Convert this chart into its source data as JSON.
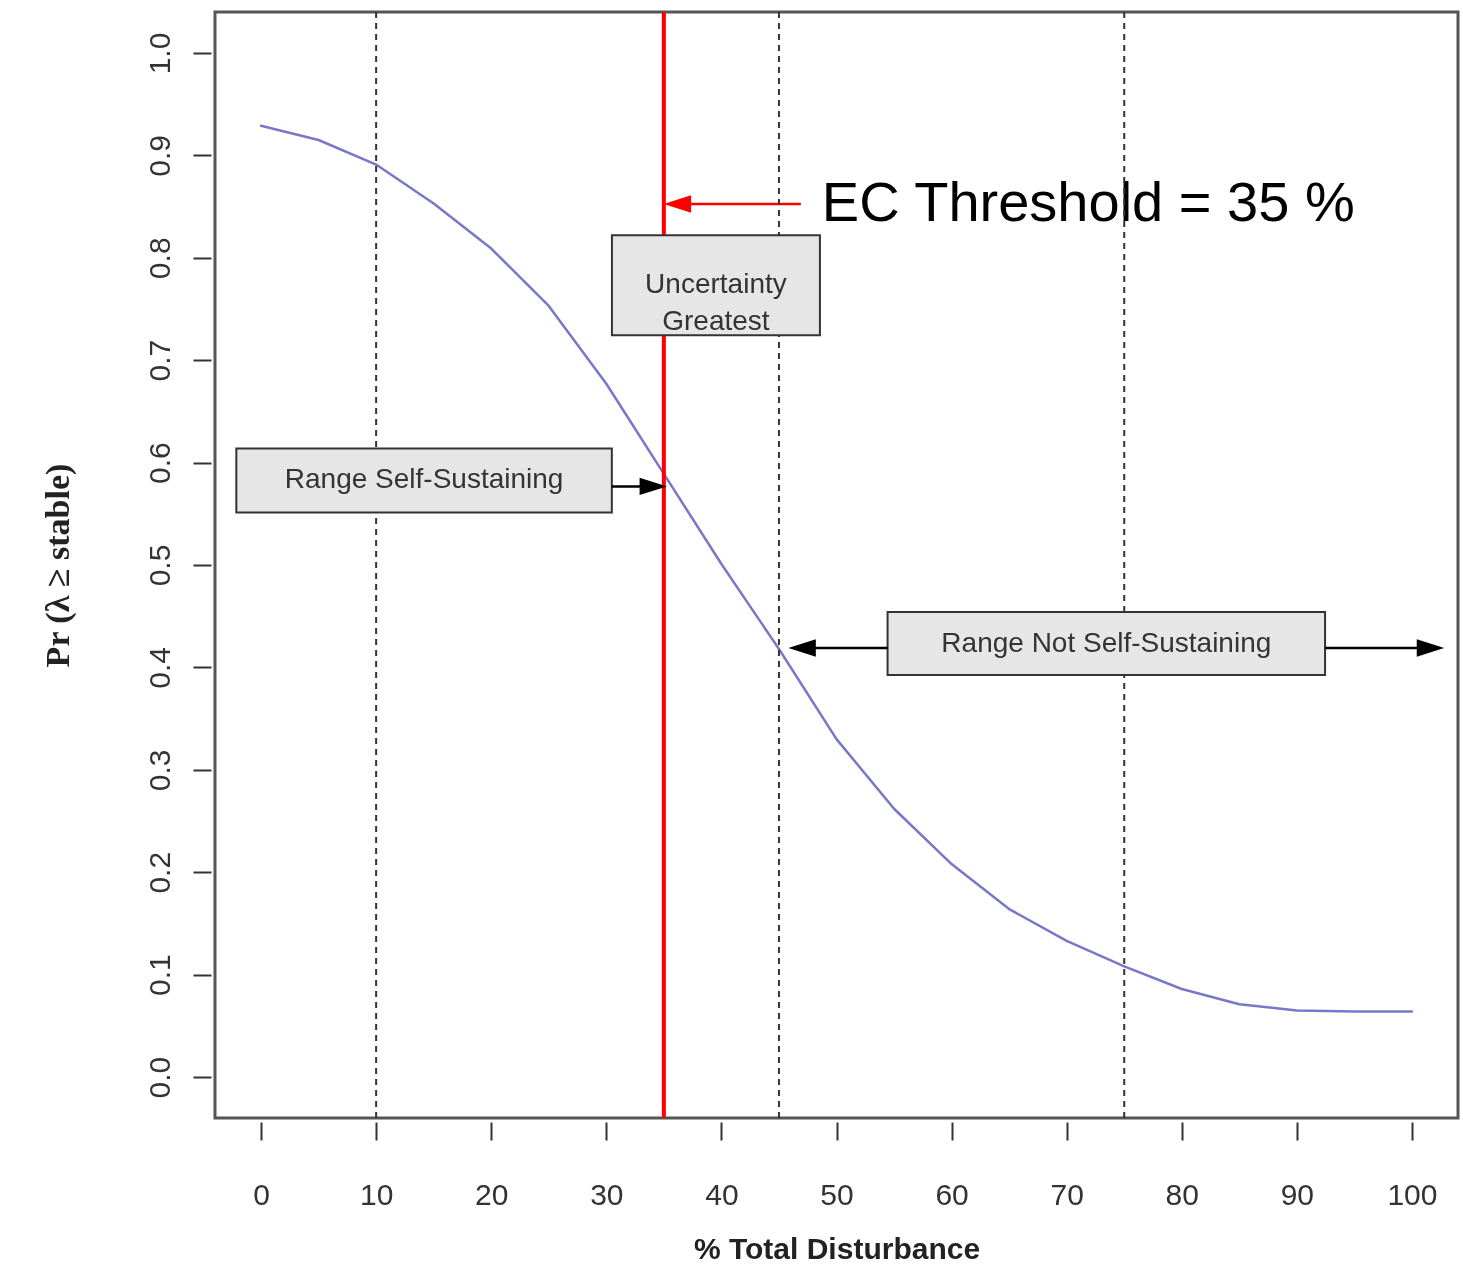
{
  "chart_data": {
    "type": "line",
    "xlabel": "% Total Disturbance",
    "ylabel": "Pr (λ ≥ stable)",
    "x": [
      0,
      5,
      10,
      15,
      20,
      25,
      30,
      35,
      40,
      45,
      50,
      55,
      60,
      65,
      70,
      75,
      80,
      85,
      90,
      95,
      100
    ],
    "series": [
      {
        "color": "#7878c8",
        "values": [
          0.929,
          0.915,
          0.891,
          0.853,
          0.809,
          0.753,
          0.677,
          0.589,
          0.501,
          0.418,
          0.33,
          0.262,
          0.208,
          0.164,
          0.133,
          0.108,
          0.086,
          0.071,
          0.065,
          0.064,
          0.064
        ]
      }
    ],
    "xlim": [
      -4,
      104
    ],
    "ylim": [
      -0.04,
      1.04
    ],
    "xticks": [
      0,
      10,
      20,
      30,
      40,
      50,
      60,
      70,
      80,
      90,
      100
    ],
    "yticks": [
      {
        "value": 0,
        "label": "0.0"
      },
      {
        "value": 0.1,
        "label": "0.1"
      },
      {
        "value": 0.2,
        "label": "0.2"
      },
      {
        "value": 0.3,
        "label": "0.3"
      },
      {
        "value": 0.4,
        "label": "0.4"
      },
      {
        "value": 0.5,
        "label": "0.5"
      },
      {
        "value": 0.6,
        "label": "0.6"
      },
      {
        "value": 0.7,
        "label": "0.7"
      },
      {
        "value": 0.8,
        "label": "0.8"
      },
      {
        "value": 0.9,
        "label": "0.9"
      },
      {
        "value": 1,
        "label": "1.0"
      }
    ],
    "ref_lines": [
      {
        "axis": "x",
        "value": 35,
        "label": "EC Threshold = 35 %",
        "color": "#ff0000"
      },
      {
        "axis": "x",
        "value": 10,
        "color": "#333333",
        "line_style": "dashed"
      },
      {
        "axis": "x",
        "value": 45,
        "color": "#333333",
        "line_style": "dashed"
      },
      {
        "axis": "x",
        "value": 75,
        "color": "#333333",
        "line_style": "dashed"
      }
    ],
    "annotations": [
      "Uncertainty Greatest",
      "Range Self-Sustaining",
      "Range Not Self-Sustaining"
    ],
    "grid": false,
    "marker": "none"
  }
}
